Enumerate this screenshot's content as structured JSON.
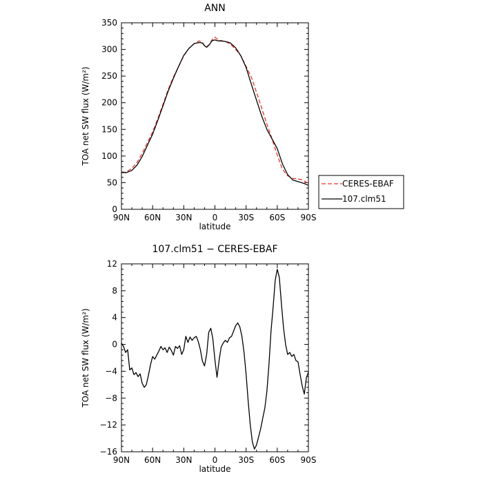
{
  "chart_data": [
    {
      "type": "line",
      "title": "ANN",
      "xlabel": "latitude",
      "ylabel": "TOA net SW flux (W/m²)",
      "xlim": [
        90,
        -90
      ],
      "ylim": [
        0,
        350
      ],
      "xticks": [
        90,
        60,
        30,
        0,
        -30,
        -60,
        -90
      ],
      "xtick_labels": [
        "90N",
        "60N",
        "30N",
        "0",
        "30S",
        "60S",
        "90S"
      ],
      "yticks": [
        0,
        50,
        100,
        150,
        200,
        250,
        300,
        350
      ],
      "ytick_labels": [
        "0",
        "50",
        "100",
        "150",
        "200",
        "250",
        "300",
        "350"
      ],
      "grid": false,
      "legend_position": "right",
      "series": [
        {
          "name": "CERES-EBAF",
          "color": "#e8332a",
          "dash": "dashed",
          "x": [
            90,
            85,
            80,
            75,
            70,
            65,
            60,
            55,
            50,
            45,
            40,
            35,
            30,
            25,
            20,
            15,
            12,
            10,
            8,
            5,
            3,
            0,
            -3,
            -5,
            -10,
            -15,
            -20,
            -25,
            -30,
            -35,
            -40,
            -45,
            -50,
            -55,
            -60,
            -65,
            -70,
            -75,
            -80,
            -85,
            -90
          ],
          "y": [
            69,
            70,
            77,
            88,
            105,
            125,
            145,
            170,
            197,
            225,
            248,
            268,
            288,
            302,
            311,
            316,
            313,
            307,
            305,
            310,
            318,
            323,
            318,
            317,
            315,
            310,
            300,
            288,
            268,
            248,
            220,
            190,
            160,
            132,
            102,
            75,
            63,
            58,
            57,
            55,
            48
          ]
        },
        {
          "name": "107.clm51",
          "color": "#000000",
          "dash": "solid",
          "x": [
            90,
            85,
            80,
            75,
            70,
            65,
            60,
            55,
            50,
            45,
            40,
            35,
            30,
            25,
            20,
            15,
            12,
            10,
            8,
            5,
            3,
            0,
            -3,
            -5,
            -10,
            -15,
            -20,
            -25,
            -30,
            -35,
            -40,
            -45,
            -50,
            -55,
            -60,
            -65,
            -70,
            -75,
            -80,
            -85,
            -90
          ],
          "y": [
            69,
            69,
            73,
            83,
            99,
            120,
            141,
            167,
            194,
            222,
            246,
            268,
            289,
            302,
            311,
            313,
            312,
            307,
            304,
            310,
            316,
            318,
            316,
            316,
            315,
            312,
            303,
            288,
            266,
            235,
            205,
            175,
            150,
            132,
            114,
            85,
            65,
            55,
            52,
            49,
            45
          ]
        }
      ]
    },
    {
      "type": "line",
      "title": "107.clm51 − CERES-EBAF",
      "xlabel": "latitude",
      "ylabel": "TOA net SW flux (W/m²)",
      "xlim": [
        90,
        -90
      ],
      "ylim": [
        -16,
        12
      ],
      "xticks": [
        90,
        60,
        30,
        0,
        -30,
        -60,
        -90
      ],
      "xtick_labels": [
        "90N",
        "60N",
        "30N",
        "0",
        "30S",
        "60S",
        "90S"
      ],
      "yticks": [
        -16,
        -12,
        -8,
        -4,
        0,
        4,
        8,
        12
      ],
      "ytick_labels": [
        "−16",
        "−12",
        "−8",
        "−4",
        "0",
        "4",
        "8",
        "12"
      ],
      "grid": false,
      "series": [
        {
          "name": "107.clm51",
          "color": "#000000",
          "dash": "solid",
          "x": [
            90,
            88,
            86,
            84,
            82,
            80,
            78,
            76,
            74,
            72,
            70,
            68,
            66,
            64,
            62,
            60,
            58,
            56,
            54,
            52,
            50,
            48,
            46,
            44,
            42,
            40,
            38,
            36,
            34,
            32,
            30,
            28,
            26,
            24,
            22,
            20,
            18,
            16,
            14,
            12,
            10,
            8,
            6,
            4,
            2,
            0,
            -2,
            -4,
            -6,
            -8,
            -10,
            -12,
            -14,
            -16,
            -18,
            -20,
            -22,
            -24,
            -26,
            -28,
            -30,
            -32,
            -34,
            -36,
            -38,
            -40,
            -42,
            -44,
            -46,
            -48,
            -50,
            -52,
            -54,
            -56,
            -58,
            -60,
            -62,
            -64,
            -66,
            -68,
            -70,
            -72,
            -74,
            -76,
            -78,
            -80,
            -82,
            -84,
            -86,
            -88,
            -90
          ],
          "y": [
            0.2,
            -0.3,
            -1.2,
            -0.8,
            -3.8,
            -3.5,
            -4.5,
            -4.2,
            -4.8,
            -4.4,
            -5.8,
            -6.4,
            -6.0,
            -4.6,
            -3.0,
            -1.8,
            -2.2,
            -1.6,
            -1.0,
            -0.3,
            -0.8,
            -0.5,
            -1.2,
            -0.4,
            -0.9,
            -1.6,
            -0.3,
            -0.6,
            -0.2,
            -1.5,
            -0.8,
            1.2,
            0.3,
            1.1,
            0.6,
            1.0,
            1.2,
            0.4,
            -0.8,
            -2.5,
            -3.2,
            -1.5,
            1.8,
            2.4,
            0.8,
            -2.3,
            -4.9,
            -2.4,
            -0.4,
            0.2,
            0.6,
            0.3,
            1.0,
            1.2,
            2.0,
            2.8,
            3.2,
            2.6,
            1.2,
            -1.2,
            -4.5,
            -8.5,
            -12.0,
            -14.5,
            -15.6,
            -15.0,
            -13.8,
            -12.6,
            -11.0,
            -9.5,
            -7.0,
            -3.0,
            2.0,
            5.5,
            9.5,
            11.2,
            10.0,
            6.0,
            2.5,
            0.0,
            -1.5,
            -1.2,
            -1.8,
            -1.5,
            -2.4,
            -2.6,
            -4.5,
            -6.2,
            -7.4,
            -5.0,
            -4.1
          ]
        }
      ]
    }
  ]
}
